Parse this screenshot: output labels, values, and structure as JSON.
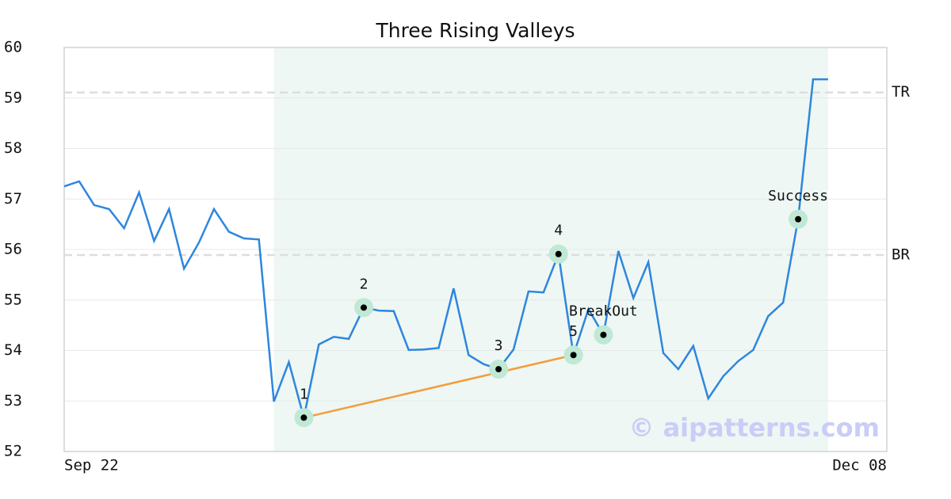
{
  "chart_data": {
    "type": "line",
    "title": "Three Rising Valleys",
    "categories": [
      "Sep 22",
      null,
      null,
      null,
      null,
      null,
      null,
      null,
      null,
      null,
      null,
      null,
      null,
      null,
      null,
      null,
      null,
      null,
      null,
      null,
      null,
      null,
      null,
      null,
      null,
      null,
      null,
      null,
      null,
      null,
      null,
      null,
      null,
      null,
      null,
      null,
      null,
      null,
      null,
      null,
      null,
      null,
      null,
      null,
      null,
      null,
      null,
      null,
      null,
      null,
      null,
      "Dec 08"
    ],
    "series": [
      {
        "color": "#2e86de",
        "values": [
          57.25,
          57.35,
          56.88,
          56.8,
          56.42,
          57.13,
          56.17,
          56.8,
          55.62,
          56.14,
          56.8,
          56.35,
          56.22,
          56.2,
          52.99,
          53.77,
          52.67,
          54.12,
          54.27,
          54.23,
          54.85,
          54.79,
          54.78,
          54.01,
          54.02,
          54.05,
          55.23,
          53.91,
          53.73,
          53.63,
          54.02,
          55.17,
          55.15,
          55.91,
          53.91,
          54.82,
          54.31,
          55.97,
          55.04,
          55.75,
          53.95,
          53.63,
          54.09,
          53.05,
          53.49,
          53.79,
          54.01,
          54.68,
          54.95,
          56.6,
          59.37,
          59.37
        ]
      }
    ],
    "ylim": [
      52,
      60
    ],
    "yticks": [
      52,
      53,
      54,
      55,
      56,
      57,
      58,
      59,
      60
    ],
    "grid": true,
    "shade_range": [
      14,
      51
    ],
    "shade_color": "#eef7f3",
    "levels": [
      {
        "label": "TR",
        "value": 59.11
      },
      {
        "label": "BR",
        "value": 55.89
      }
    ],
    "annotations": [
      {
        "label": "1",
        "index": 16
      },
      {
        "label": "2",
        "index": 20
      },
      {
        "label": "3",
        "index": 29
      },
      {
        "label": "4",
        "index": 33
      },
      {
        "label": "5",
        "index": 34
      },
      {
        "label": "BreakOut",
        "index": 36
      },
      {
        "label": "Success",
        "index": 49
      }
    ],
    "trendline": {
      "from": 16,
      "to": 34,
      "color": "#f39c3d"
    },
    "watermark": "© aipatterns.com"
  }
}
